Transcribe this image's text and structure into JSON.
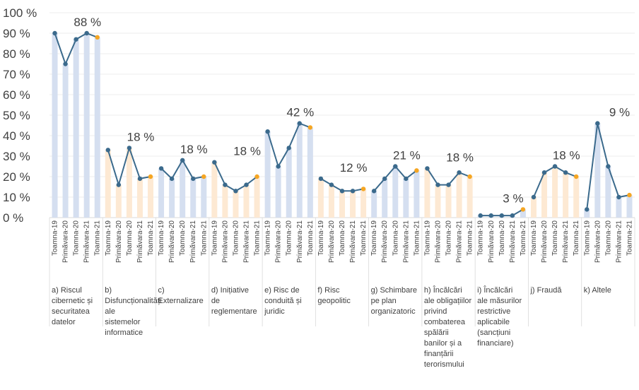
{
  "chart_data": {
    "type": "bar",
    "title": "",
    "xlabel": "",
    "ylabel": "",
    "ylim": [
      0,
      100
    ],
    "yticks": [
      "0 %",
      "10 %",
      "20 %",
      "30 %",
      "40 %",
      "50 %",
      "60 %",
      "70 %",
      "80 %",
      "90 %",
      "100 %"
    ],
    "periods": [
      "Toamna-19",
      "Primăvara-20",
      "Toamna-20",
      "Primăvara-21",
      "Toamna-21"
    ],
    "colors": {
      "bar_blue": "#d5dff0",
      "bar_peach": "#fde9d3",
      "line": "#3b6a8c",
      "last_point": "#f5a623",
      "gridline": "#d9d9d9"
    },
    "groups": [
      {
        "label": "a) Riscul cibernetic și securitatea datelor",
        "bar_color": "blue",
        "values": [
          90,
          75,
          87,
          90,
          88
        ],
        "annotation": "88 %"
      },
      {
        "label": "b) Disfuncționalități ale sistemelor informatice",
        "bar_color": "peach",
        "values": [
          33,
          16,
          34,
          19,
          20
        ],
        "annotation": "18 %"
      },
      {
        "label": "c) Externalizare",
        "bar_color": "blue",
        "values": [
          24,
          19,
          28,
          19,
          20
        ],
        "annotation": "18 %"
      },
      {
        "label": "d) Inițiative de reglementare",
        "bar_color": "peach",
        "values": [
          27,
          16,
          13,
          16,
          20
        ],
        "annotation": "18 %"
      },
      {
        "label": "e) Risc de conduită și juridic",
        "bar_color": "blue",
        "values": [
          42,
          25,
          34,
          46,
          44
        ],
        "annotation": "42 %"
      },
      {
        "label": "f) Risc geopolitic",
        "bar_color": "peach",
        "values": [
          19,
          16,
          13,
          13,
          14
        ],
        "annotation": "12 %"
      },
      {
        "label": "g) Schimbare pe plan organizatoric",
        "bar_color": "blue",
        "values": [
          13,
          19,
          25,
          19,
          23
        ],
        "annotation": "21 %"
      },
      {
        "label": "h) Încălcări ale obligațiilor privind combaterea spălării banilor și a finanțării terorismului",
        "bar_color": "peach",
        "values": [
          24,
          16,
          16,
          22,
          20
        ],
        "annotation": "18 %"
      },
      {
        "label": "i) Încălcări ale măsurilor restrictive aplicabile (sancțiuni financiare)",
        "bar_color": "blue",
        "values": [
          1,
          1,
          1,
          1,
          4
        ],
        "annotation": "3 %"
      },
      {
        "label": "j) Fraudă",
        "bar_color": "peach",
        "values": [
          10,
          22,
          25,
          22,
          20
        ],
        "annotation": "18 %"
      },
      {
        "label": "k) Altele",
        "bar_color": "blue",
        "values": [
          4,
          46,
          25,
          10,
          11
        ],
        "annotation": "9 %"
      }
    ]
  }
}
